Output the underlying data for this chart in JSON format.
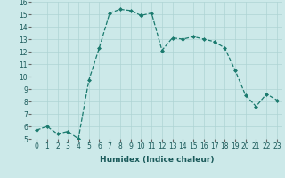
{
  "xlabel": "Humidex (Indice chaleur)",
  "x": [
    0,
    1,
    2,
    3,
    4,
    5,
    6,
    7,
    8,
    9,
    10,
    11,
    12,
    13,
    14,
    15,
    16,
    17,
    18,
    19,
    20,
    21,
    22,
    23
  ],
  "y": [
    5.7,
    6.0,
    5.4,
    5.6,
    5.0,
    9.7,
    12.3,
    15.1,
    15.4,
    15.3,
    14.9,
    15.1,
    12.1,
    13.1,
    13.0,
    13.2,
    13.0,
    12.8,
    12.3,
    10.5,
    8.5,
    7.6,
    8.6,
    8.1
  ],
  "line_color": "#1a7a6e",
  "marker": "D",
  "marker_size": 2.0,
  "line_width": 0.9,
  "bg_color": "#cce9e9",
  "grid_color": "#aed4d4",
  "ylim": [
    5,
    16
  ],
  "yticks": [
    5,
    6,
    7,
    8,
    9,
    10,
    11,
    12,
    13,
    14,
    15,
    16
  ],
  "xticks": [
    0,
    1,
    2,
    3,
    4,
    5,
    6,
    7,
    8,
    9,
    10,
    11,
    12,
    13,
    14,
    15,
    16,
    17,
    18,
    19,
    20,
    21,
    22,
    23
  ],
  "xlabel_fontsize": 6.5,
  "tick_fontsize": 5.5
}
